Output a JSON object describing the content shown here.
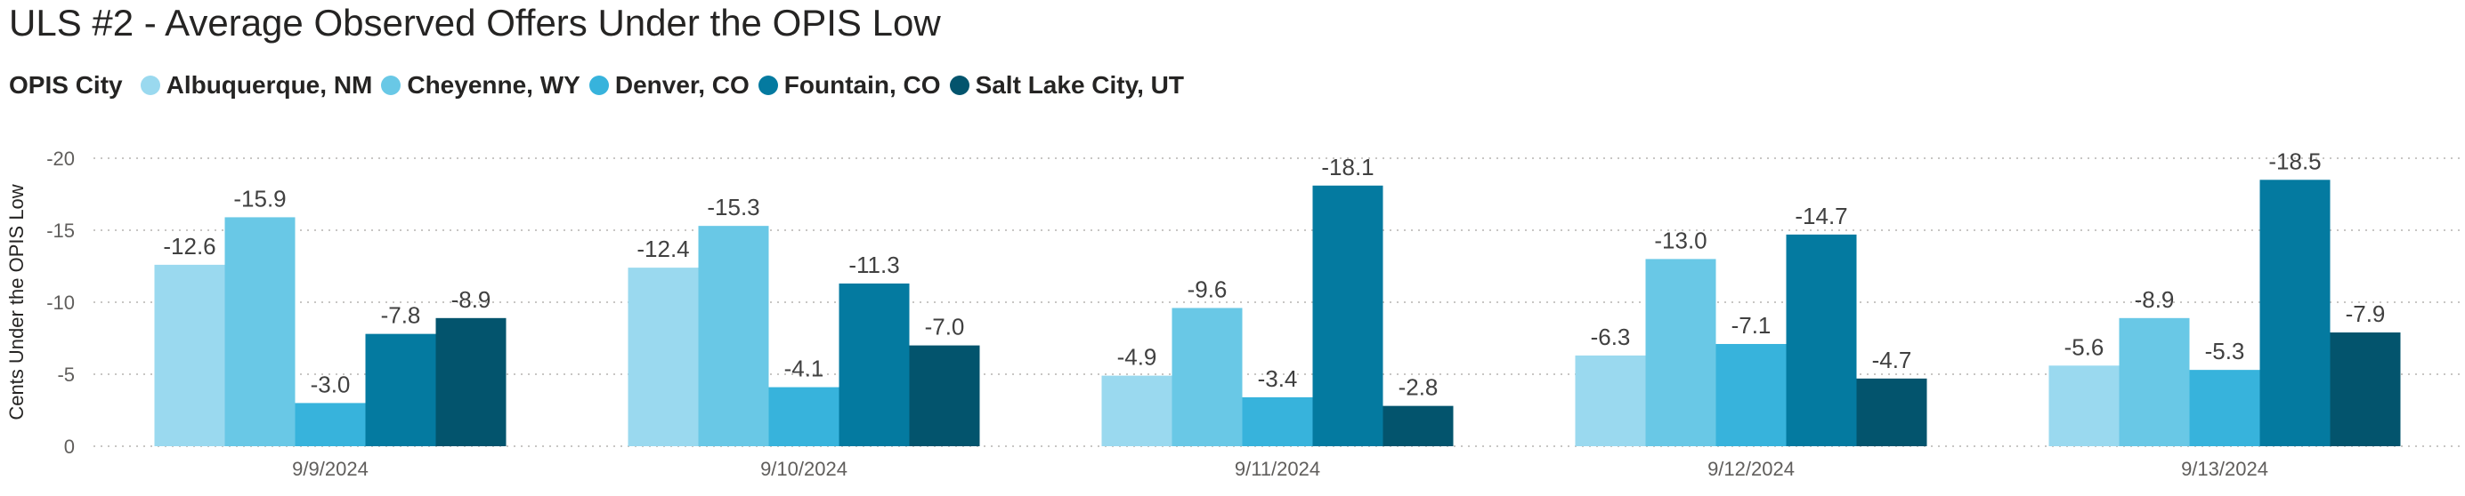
{
  "title": "ULS #2 - Average Observed Offers Under the OPIS Low",
  "legend": {
    "title": "OPIS City",
    "items": [
      {
        "label": "Albuquerque, NM",
        "color": "#9ad9ef"
      },
      {
        "label": "Cheyenne, WY",
        "color": "#69c8e6"
      },
      {
        "label": "Denver, CO",
        "color": "#37b3dc"
      },
      {
        "label": "Fountain, CO",
        "color": "#047aa0"
      },
      {
        "label": "Salt Lake City, UT",
        "color": "#03546d"
      }
    ]
  },
  "chart_data": {
    "type": "bar",
    "title": "ULS #2 - Average Observed Offers Under the OPIS Low",
    "xlabel": "",
    "ylabel": "Cents Under the OPIS Low",
    "y_reversed": true,
    "ylim": [
      0,
      -20
    ],
    "yticks": [
      0,
      -5,
      -10,
      -15,
      -20
    ],
    "ytick_labels": [
      "0",
      "-5",
      "-10",
      "-15",
      "-20"
    ],
    "grid": true,
    "legend_position": "top-left",
    "categories": [
      "9/9/2024",
      "9/10/2024",
      "9/11/2024",
      "9/12/2024",
      "9/13/2024"
    ],
    "series": [
      {
        "name": "Albuquerque, NM",
        "color": "#9ad9ef",
        "values": [
          -12.6,
          -12.4,
          -4.9,
          -6.3,
          -5.6
        ],
        "labels": [
          "-12.6",
          "-12.4",
          "-4.9",
          "-6.3",
          "-5.6"
        ]
      },
      {
        "name": "Cheyenne, WY",
        "color": "#69c8e6",
        "values": [
          -15.9,
          -15.3,
          -9.6,
          -13.0,
          -8.9
        ],
        "labels": [
          "-15.9",
          "-15.3",
          "-9.6",
          "-13.0",
          "-8.9"
        ]
      },
      {
        "name": "Denver, CO",
        "color": "#37b3dc",
        "values": [
          -3.0,
          -4.1,
          -3.4,
          -7.1,
          -5.3
        ],
        "labels": [
          "-3.0",
          "-4.1",
          "-3.4",
          "-7.1",
          "-5.3"
        ]
      },
      {
        "name": "Fountain, CO",
        "color": "#047aa0",
        "values": [
          -7.8,
          -11.3,
          -18.1,
          -14.7,
          -18.5
        ],
        "labels": [
          "-7.8",
          "-11.3",
          "-18.1",
          "-14.7",
          "-18.5"
        ]
      },
      {
        "name": "Salt Lake City, UT",
        "color": "#03546d",
        "values": [
          -8.9,
          -7.0,
          -2.8,
          -4.7,
          -7.9
        ],
        "labels": [
          "-8.9",
          "-7.0",
          "-2.8",
          "-4.7",
          "-7.9"
        ]
      }
    ]
  }
}
